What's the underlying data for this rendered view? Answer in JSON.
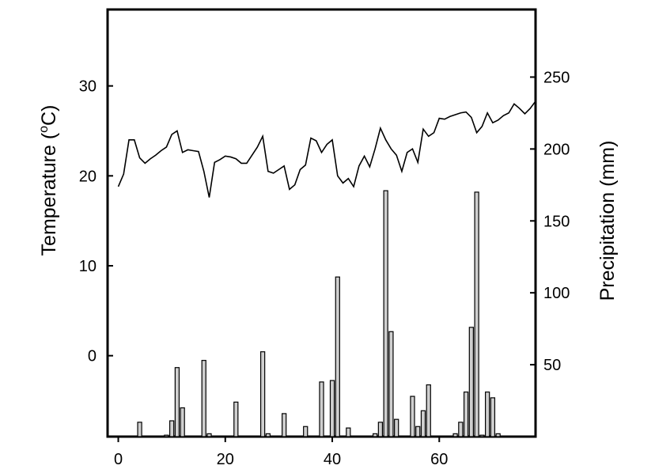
{
  "chart_data": {
    "type": "bar+line",
    "title": "",
    "xlabel": "",
    "ylabel_left": "Temperature (",
    "ylabel_left_sup": "o",
    "ylabel_left_end": "C)",
    "ylabel_right": "Precipitation (mm)",
    "xlim": [
      -2,
      78
    ],
    "ylim_left": [
      -9,
      38.5
    ],
    "ylim_right": [
      0,
      297
    ],
    "xticks": [
      0,
      20,
      40,
      60
    ],
    "yticks_left": [
      0,
      10,
      20,
      30
    ],
    "yticks_right": [
      50,
      100,
      150,
      200,
      250
    ],
    "series": [
      {
        "kind": "line",
        "axis": "left",
        "x": [
          0,
          1,
          2,
          3,
          4,
          5,
          6,
          7,
          8,
          9,
          10,
          11,
          12,
          13,
          14,
          15,
          16,
          17,
          18,
          19,
          20,
          21,
          22,
          23,
          24,
          25,
          26,
          27,
          28,
          29,
          30,
          31,
          32,
          33,
          34,
          35,
          36,
          37,
          38,
          39,
          40,
          41,
          42,
          43,
          44,
          45,
          46,
          47,
          48,
          49,
          50,
          51,
          52,
          53,
          54,
          55,
          56,
          57,
          58,
          59,
          60,
          61,
          62,
          63,
          64,
          65,
          66,
          67,
          68,
          69,
          70,
          71,
          72,
          73,
          74,
          75,
          76,
          77,
          78
        ],
        "values": [
          18.8,
          20.2,
          24.0,
          24.0,
          22.0,
          21.4,
          21.9,
          22.3,
          22.8,
          23.2,
          24.6,
          25.0,
          22.6,
          22.9,
          22.8,
          22.7,
          20.5,
          17.6,
          21.5,
          21.8,
          22.2,
          22.1,
          21.9,
          21.4,
          21.4,
          22.3,
          23.2,
          24.4,
          20.5,
          20.3,
          20.7,
          21.1,
          18.5,
          19.0,
          20.7,
          21.2,
          24.2,
          23.9,
          22.6,
          23.5,
          24.0,
          20.0,
          19.2,
          19.7,
          18.8,
          21.1,
          22.2,
          21.0,
          23.0,
          25.3,
          24.0,
          23.0,
          22.3,
          20.5,
          22.6,
          23.0,
          21.5,
          25.2,
          24.4,
          24.8,
          26.4,
          26.3,
          26.6,
          26.8,
          27.0,
          27.1,
          26.5,
          24.8,
          25.5,
          27.0,
          25.9,
          26.2,
          26.7,
          27.0,
          28.0,
          27.5,
          26.9,
          27.5,
          28.3
        ]
      },
      {
        "kind": "bar",
        "axis": "right",
        "x": [
          4,
          9,
          10,
          11,
          12,
          16,
          17,
          22,
          27,
          28,
          31,
          35,
          38,
          40,
          41,
          43,
          48,
          49,
          50,
          51,
          52,
          55,
          56,
          57,
          58,
          63,
          64,
          65,
          66,
          67,
          68,
          69,
          70,
          71
        ],
        "values": [
          10,
          1,
          11,
          48,
          20,
          53,
          2,
          24,
          59,
          2,
          16,
          7,
          38,
          39,
          111,
          6,
          2,
          10,
          171,
          73,
          12,
          28,
          7,
          18,
          36,
          2,
          10,
          31,
          76,
          170,
          1,
          31,
          27,
          2
        ]
      }
    ]
  }
}
